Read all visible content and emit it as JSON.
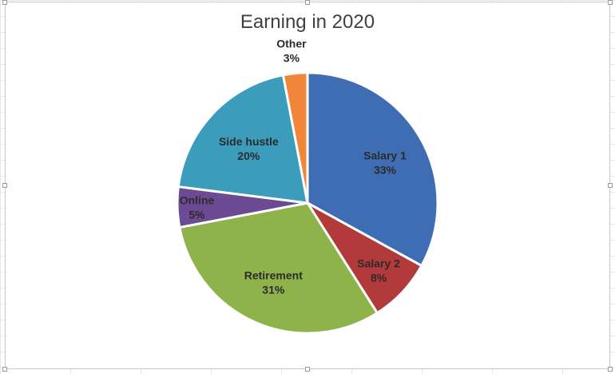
{
  "chart_data": {
    "type": "pie",
    "title": "Earning in 2020",
    "slices": [
      {
        "label": "Salary 1",
        "value": 33,
        "value_label": "33%",
        "color": "#3f6db3"
      },
      {
        "label": "Salary 2",
        "value": 8,
        "value_label": "8%",
        "color": "#b23a3a"
      },
      {
        "label": "Retirement",
        "value": 31,
        "value_label": "31%",
        "color": "#8db34a"
      },
      {
        "label": "Online",
        "value": 5,
        "value_label": "5%",
        "color": "#6c4a94"
      },
      {
        "label": "Side hustle",
        "value": 20,
        "value_label": "20%",
        "color": "#3b9cbc"
      },
      {
        "label": "Other",
        "value": 3,
        "value_label": "3%",
        "color": "#f0863a"
      }
    ]
  }
}
